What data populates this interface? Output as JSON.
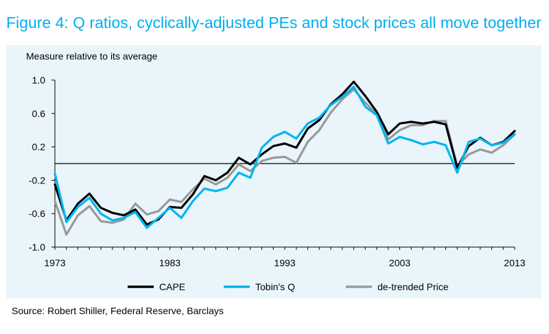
{
  "figure": {
    "title": "Figure 4: Q ratios, cyclically-adjusted PEs and stock prices all move together",
    "source": "Source: Robert Shiller, Federal Reserve, Barclays"
  },
  "colors": {
    "title": "#00aeef",
    "panel_background": "#e9f5fb",
    "cape": "#000000",
    "tobins_q": "#00b4ef",
    "price": "#999999"
  },
  "chart_data": {
    "type": "line",
    "ylabel": "Measure relative to its average",
    "xlabel": "",
    "ylim": [
      -1.0,
      1.0
    ],
    "xlim": [
      1973,
      2013
    ],
    "yticks": [
      -1.0,
      -0.6,
      -0.2,
      0.2,
      0.6,
      1.0
    ],
    "ytick_labels": [
      "-1.0",
      "-0.6",
      "-0.2",
      "0.2",
      "0.6",
      "1.0"
    ],
    "xticks": [
      1973,
      1983,
      1993,
      2003,
      2013
    ],
    "xtick_labels": [
      "1973",
      "1983",
      "1993",
      "2003",
      "2013"
    ],
    "zero_line": true,
    "grid": false,
    "legend_position": "bottom",
    "x": [
      1973,
      1974,
      1975,
      1976,
      1977,
      1978,
      1979,
      1980,
      1981,
      1982,
      1983,
      1984,
      1985,
      1986,
      1987,
      1988,
      1989,
      1990,
      1991,
      1992,
      1993,
      1994,
      1995,
      1996,
      1997,
      1998,
      1999,
      2000,
      2001,
      2002,
      2003,
      2004,
      2005,
      2006,
      2007,
      2008,
      2009,
      2010,
      2011,
      2012,
      2013
    ],
    "series": [
      {
        "name": "CAPE",
        "values": [
          -0.25,
          -0.68,
          -0.48,
          -0.36,
          -0.53,
          -0.59,
          -0.62,
          -0.55,
          -0.73,
          -0.67,
          -0.52,
          -0.53,
          -0.37,
          -0.15,
          -0.2,
          -0.11,
          0.07,
          -0.01,
          0.11,
          0.21,
          0.24,
          0.19,
          0.42,
          0.52,
          0.71,
          0.83,
          0.98,
          0.81,
          0.62,
          0.35,
          0.48,
          0.5,
          0.48,
          0.5,
          0.47,
          -0.05,
          0.21,
          0.31,
          0.22,
          0.26,
          0.39
        ]
      },
      {
        "name": "Tobin's Q",
        "values": [
          -0.12,
          -0.7,
          -0.52,
          -0.41,
          -0.6,
          -0.68,
          -0.65,
          -0.58,
          -0.77,
          -0.65,
          -0.53,
          -0.65,
          -0.45,
          -0.3,
          -0.33,
          -0.29,
          -0.11,
          -0.17,
          0.19,
          0.32,
          0.38,
          0.3,
          0.48,
          0.55,
          0.7,
          0.8,
          0.92,
          0.68,
          0.58,
          0.24,
          0.32,
          0.28,
          0.23,
          0.26,
          0.22,
          -0.11,
          0.26,
          0.3,
          0.22,
          0.25,
          0.35
        ]
      },
      {
        "name": "de-trended Price",
        "values": [
          -0.45,
          -0.85,
          -0.62,
          -0.51,
          -0.69,
          -0.71,
          -0.67,
          -0.48,
          -0.61,
          -0.57,
          -0.43,
          -0.46,
          -0.31,
          -0.18,
          -0.25,
          -0.17,
          -0.01,
          -0.09,
          0.03,
          0.07,
          0.08,
          0.01,
          0.26,
          0.4,
          0.61,
          0.77,
          0.89,
          0.73,
          0.59,
          0.29,
          0.4,
          0.46,
          0.46,
          0.51,
          0.51,
          -0.03,
          0.11,
          0.17,
          0.13,
          0.22,
          0.35
        ]
      }
    ]
  }
}
